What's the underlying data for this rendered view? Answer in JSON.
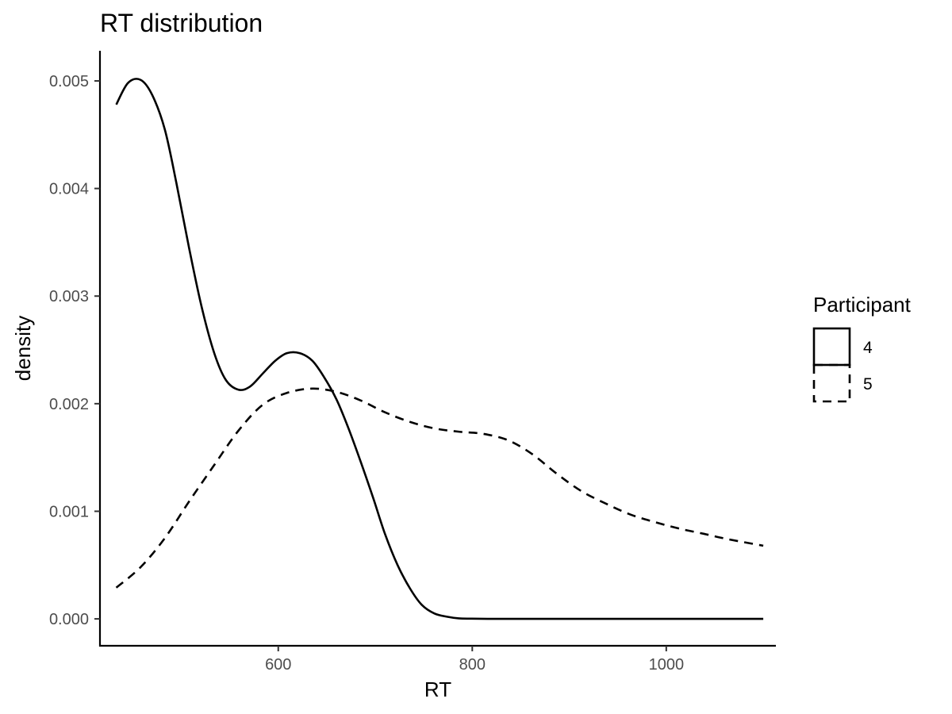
{
  "chart_data": {
    "type": "line",
    "title": "RT distribution",
    "xlabel": "RT",
    "ylabel": "density",
    "xlim": [
      417,
      1113
    ],
    "ylim": [
      -0.00025,
      0.00528
    ],
    "x_ticks": [
      600,
      800,
      1000
    ],
    "y_ticks": [
      0.0,
      0.001,
      0.002,
      0.003,
      0.004,
      0.005
    ],
    "x_tick_labels": [
      "600",
      "800",
      "1000"
    ],
    "y_tick_labels": [
      "0.000",
      "0.001",
      "0.002",
      "0.003",
      "0.004",
      "0.005"
    ],
    "grid": false,
    "legend": {
      "title": "Participant",
      "placement": "right"
    },
    "series": [
      {
        "name": "4",
        "linetype": "solid",
        "color": "#000000",
        "x": [
          433,
          445,
          458,
          470,
          483,
          495,
          508,
          521,
          534,
          546,
          559,
          571,
          584,
          597,
          609,
          622,
          635,
          647,
          660,
          672,
          685,
          698,
          710,
          723,
          736,
          748,
          761,
          774,
          786,
          799,
          824,
          850,
          900,
          950,
          1000,
          1050,
          1100
        ],
        "y": [
          0.00478,
          0.00498,
          0.00501,
          0.00487,
          0.00455,
          0.00405,
          0.00345,
          0.0029,
          0.00247,
          0.00222,
          0.00213,
          0.00216,
          0.00228,
          0.0024,
          0.00247,
          0.00247,
          0.0024,
          0.00225,
          0.00204,
          0.00178,
          0.00146,
          0.00112,
          0.00079,
          0.0005,
          0.00028,
          0.00013,
          5e-05,
          2e-05,
          5e-06,
          2e-06,
          0.0,
          0.0,
          0.0,
          0.0,
          0.0,
          0.0,
          0.0
        ]
      },
      {
        "name": "5",
        "linetype": "dashed",
        "color": "#000000",
        "x": [
          433,
          458,
          483,
          508,
          534,
          559,
          584,
          609,
          635,
          660,
          685,
          710,
          736,
          761,
          786,
          811,
          837,
          862,
          887,
          912,
          938,
          963,
          988,
          1013,
          1039,
          1064,
          1100
        ],
        "y": [
          0.00029,
          0.00048,
          0.00075,
          0.00109,
          0.00143,
          0.00175,
          0.00199,
          0.0021,
          0.00214,
          0.00211,
          0.00203,
          0.00192,
          0.00183,
          0.00177,
          0.00174,
          0.00172,
          0.00166,
          0.00153,
          0.00135,
          0.00119,
          0.00107,
          0.00097,
          0.0009,
          0.00084,
          0.00079,
          0.00074,
          0.00068
        ]
      }
    ]
  }
}
